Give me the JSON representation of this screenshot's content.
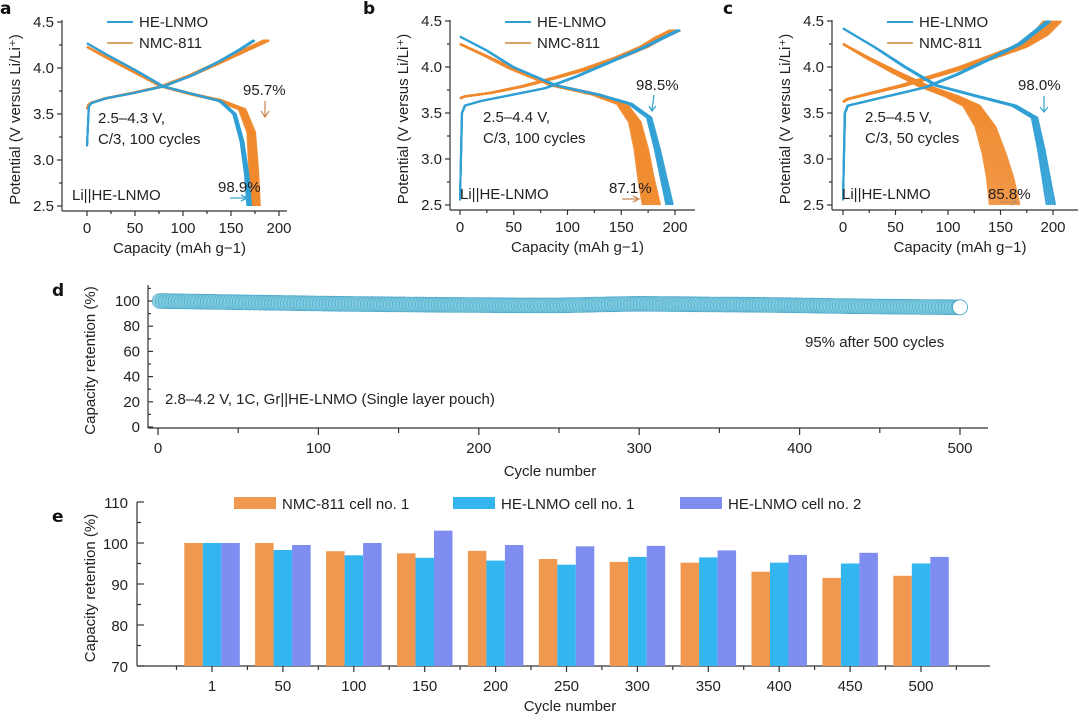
{
  "figure": {
    "colors": {
      "he_lnmo_line": "#2f9fd4",
      "nmc811_line": "#ef8a2e",
      "nmc811_legend": "#d9a36b",
      "he_lnmo_dot": "#7fcbe0",
      "he_lnmo_dot_edge": "#3a9ec2",
      "bar_nmc811": "#f0984f",
      "bar_he1": "#33b5ef",
      "bar_he2": "#7f8cf0",
      "arrow_nmc": "#c98b5a",
      "arrow_he": "#3aa6d0"
    }
  },
  "chart_data": [
    {
      "panel": "a",
      "type": "line",
      "xlabel": "Capacity (mAh g−1)",
      "ylabel": "Potential (V versus Li/Li⁺)",
      "xlim": [
        -20,
        215
      ],
      "ylim": [
        2.45,
        4.55
      ],
      "xticks": [
        "0",
        "50",
        "100",
        "150",
        "200"
      ],
      "xtick_values": [
        0,
        50,
        100,
        150,
        200
      ],
      "yticks": [
        "2.5",
        "3.0",
        "3.5",
        "4.0",
        "4.5"
      ],
      "ytick_values": [
        2.5,
        3.0,
        3.5,
        4.0,
        4.5
      ],
      "legend": [
        "HE-LNMO",
        "NMC-811"
      ],
      "legend_position": "top-center",
      "annotations": {
        "conditions_line1": "2.5–4.3 V,",
        "conditions_line2": "C/3, 100 cycles",
        "cell": "Li||HE-LNMO",
        "nmc_retention": "95.7%",
        "he_retention": "98.9%"
      },
      "series": [
        {
          "name": "HE-LNMO charge",
          "x": [
            0,
            2,
            5,
            20,
            50,
            80,
            110,
            140,
            160,
            175
          ],
          "y": [
            3.15,
            3.58,
            3.62,
            3.67,
            3.73,
            3.8,
            3.92,
            4.08,
            4.2,
            4.3
          ]
        },
        {
          "name": "HE-LNMO discharge",
          "x": [
            0,
            20,
            50,
            80,
            110,
            140,
            155,
            163,
            168,
            171
          ],
          "y": [
            4.27,
            4.15,
            3.98,
            3.8,
            3.72,
            3.64,
            3.5,
            3.2,
            2.85,
            2.5
          ]
        },
        {
          "name": "NMC-811 charge",
          "x": [
            0,
            2,
            5,
            20,
            50,
            80,
            110,
            140,
            165,
            190
          ],
          "y": [
            3.55,
            3.6,
            3.62,
            3.67,
            3.73,
            3.8,
            3.92,
            4.06,
            4.18,
            4.3
          ]
        },
        {
          "name": "NMC-811 discharge",
          "x": [
            0,
            20,
            50,
            80,
            110,
            140,
            165,
            175,
            178,
            180
          ],
          "y": [
            4.23,
            4.12,
            3.96,
            3.8,
            3.72,
            3.65,
            3.55,
            3.3,
            2.9,
            2.5
          ]
        }
      ]
    },
    {
      "panel": "b",
      "type": "line",
      "xlabel": "Capacity (mAh g−1)",
      "ylabel": "Potential (V versus Li/Li⁺)",
      "xlim": [
        -10,
        220
      ],
      "ylim": [
        2.45,
        4.55
      ],
      "xticks": [
        "0",
        "50",
        "100",
        "150",
        "200"
      ],
      "xtick_values": [
        0,
        50,
        100,
        150,
        200
      ],
      "yticks": [
        "2.5",
        "3.0",
        "3.5",
        "4.0",
        "4.5"
      ],
      "ytick_values": [
        2.5,
        3.0,
        3.5,
        4.0,
        4.5
      ],
      "legend": [
        "HE-LNMO",
        "NMC-811"
      ],
      "legend_position": "top-center",
      "annotations": {
        "conditions_line1": "2.5–4.4 V,",
        "conditions_line2": "C/3, 100 cycles",
        "cell": "Li||HE-LNMO",
        "nmc_retention": "87.1%",
        "he_retention": "98.5%"
      },
      "series": [
        {
          "name": "HE-LNMO charge",
          "x": [
            0,
            2,
            5,
            20,
            50,
            80,
            110,
            140,
            170,
            205
          ],
          "y": [
            2.55,
            3.5,
            3.58,
            3.63,
            3.7,
            3.77,
            3.9,
            4.05,
            4.2,
            4.4
          ]
        },
        {
          "name": "HE-LNMO discharge",
          "x": [
            0,
            25,
            50,
            90,
            130,
            160,
            178,
            186,
            192,
            198
          ],
          "y": [
            4.33,
            4.18,
            4.0,
            3.8,
            3.7,
            3.6,
            3.45,
            3.1,
            2.8,
            2.5
          ]
        },
        {
          "name": "NMC-811 charge",
          "x": [
            0,
            5,
            30,
            60,
            90,
            120,
            150,
            175,
            190,
            205
          ],
          "y": [
            3.66,
            3.68,
            3.72,
            3.79,
            3.88,
            3.98,
            4.1,
            4.22,
            4.32,
            4.4
          ]
        },
        {
          "name": "NMC-811 discharge",
          "x": [
            0,
            25,
            50,
            90,
            130,
            155,
            168,
            175,
            180,
            186
          ],
          "y": [
            4.25,
            4.12,
            3.98,
            3.8,
            3.7,
            3.6,
            3.4,
            3.1,
            2.8,
            2.5
          ]
        }
      ]
    },
    {
      "panel": "c",
      "type": "line",
      "xlabel": "Capacity (mAh g−1)",
      "ylabel": "Potential (V versus Li/Li⁺)",
      "xlim": [
        -10,
        220
      ],
      "ylim": [
        2.45,
        4.55
      ],
      "xticks": [
        "0",
        "50",
        "100",
        "150",
        "200"
      ],
      "xtick_values": [
        0,
        50,
        100,
        150,
        200
      ],
      "yticks": [
        "2.5",
        "3.0",
        "3.5",
        "4.0",
        "4.5"
      ],
      "ytick_values": [
        2.5,
        3.0,
        3.5,
        4.0,
        4.5
      ],
      "legend": [
        "HE-LNMO",
        "NMC-811"
      ],
      "legend_position": "top-center",
      "annotations": {
        "conditions_line1": "2.5–4.5 V,",
        "conditions_line2": "C/3, 50 cycles",
        "cell": "Li||HE-LNMO",
        "nmc_retention": "85.8%",
        "he_retention": "98.0%"
      },
      "series": [
        {
          "name": "HE-LNMO charge",
          "x": [
            0,
            2,
            5,
            20,
            50,
            80,
            110,
            140,
            170,
            198
          ],
          "y": [
            2.55,
            3.5,
            3.58,
            3.62,
            3.7,
            3.78,
            3.92,
            4.08,
            4.25,
            4.5
          ]
        },
        {
          "name": "HE-LNMO discharge",
          "x": [
            0,
            30,
            60,
            90,
            130,
            165,
            185,
            192,
            197,
            202
          ],
          "y": [
            4.42,
            4.22,
            4.0,
            3.8,
            3.68,
            3.58,
            3.45,
            3.1,
            2.8,
            2.5
          ]
        },
        {
          "name": "NMC-811 charge",
          "x": [
            0,
            5,
            30,
            60,
            90,
            120,
            150,
            175,
            195,
            208
          ],
          "y": [
            3.62,
            3.65,
            3.72,
            3.8,
            3.9,
            4.0,
            4.12,
            4.22,
            4.35,
            4.5
          ]
        },
        {
          "name": "NMC-811 discharge",
          "x": [
            0,
            25,
            50,
            80,
            110,
            130,
            145,
            155,
            162,
            168
          ],
          "y": [
            4.25,
            4.1,
            3.96,
            3.8,
            3.68,
            3.58,
            3.35,
            3.05,
            2.8,
            2.5
          ]
        }
      ]
    },
    {
      "panel": "d",
      "type": "scatter",
      "xlabel": "Cycle number",
      "ylabel": "Capacity retention (%)",
      "xlim": [
        -5,
        525
      ],
      "ylim": [
        0,
        112
      ],
      "xticks": [
        "0",
        "100",
        "200",
        "300",
        "400",
        "500"
      ],
      "xtick_values": [
        0,
        100,
        200,
        300,
        400,
        500
      ],
      "yticks": [
        "0",
        "20",
        "40",
        "60",
        "80",
        "100"
      ],
      "ytick_values": [
        0,
        20,
        40,
        60,
        80,
        100
      ],
      "annotations": {
        "summary": "95% after 500 cycles",
        "conditions": "2.8–4.2 V, 1C, Gr||HE-LNMO (Single layer pouch)"
      },
      "series": [
        {
          "name": "HE-LNMO pouch",
          "x": [
            1,
            25,
            50,
            75,
            100,
            125,
            150,
            175,
            200,
            225,
            250,
            275,
            300,
            325,
            350,
            375,
            400,
            425,
            450,
            475,
            500
          ],
          "y": [
            100,
            99.5,
            99,
            98.5,
            98,
            97.6,
            97.3,
            97,
            96.8,
            96.5,
            96.5,
            97.2,
            97.8,
            97.5,
            97.2,
            97,
            96.5,
            96,
            95.6,
            95.3,
            95
          ]
        }
      ]
    },
    {
      "panel": "e",
      "type": "bar",
      "xlabel": "Cycle number",
      "ylabel": "Capacity retention (%)",
      "ylim": [
        70,
        110
      ],
      "yticks": [
        "70",
        "80",
        "90",
        "100",
        "110"
      ],
      "ytick_values": [
        70,
        80,
        90,
        100,
        110
      ],
      "categories": [
        "1",
        "50",
        "100",
        "150",
        "200",
        "250",
        "300",
        "350",
        "400",
        "450",
        "500"
      ],
      "legend_position": "top",
      "series": [
        {
          "name": "NMC-811 cell no. 1",
          "values": [
            100,
            100,
            98.0,
            97.5,
            98.1,
            96.1,
            95.4,
            95.2,
            93.0,
            91.5,
            92.0
          ]
        },
        {
          "name": "HE-LNMO cell no. 1",
          "values": [
            100,
            98.3,
            97.0,
            96.4,
            95.7,
            94.7,
            96.6,
            96.5,
            95.2,
            95.0,
            95.0
          ]
        },
        {
          "name": "HE-LNMO cell no. 2",
          "values": [
            100,
            99.5,
            100,
            103.0,
            99.5,
            99.2,
            99.3,
            98.2,
            97.1,
            97.6,
            96.6
          ]
        }
      ]
    }
  ]
}
